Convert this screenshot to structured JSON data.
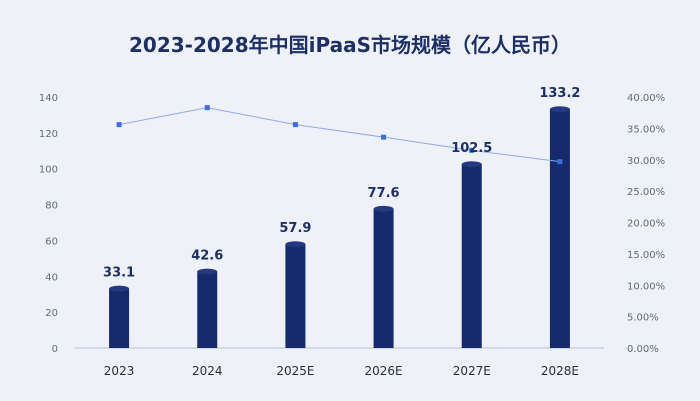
{
  "chart_data": {
    "type": "bar",
    "title": "2023-2028年中国iPaaS市场规模（亿人民币）",
    "categories": [
      "2023",
      "2024",
      "2025E",
      "2026E",
      "2027E",
      "2028E"
    ],
    "series": [
      {
        "type": "bar",
        "values": [
          33.1,
          42.6,
          57.9,
          77.6,
          102.5,
          133.2
        ],
        "axis": "left",
        "color": "#15296b"
      },
      {
        "type": "line",
        "values": [
          35.6,
          38.3,
          35.6,
          33.6,
          31.5,
          29.7
        ],
        "axis": "right",
        "color": "#3b6ee0"
      }
    ],
    "ylim_left": [
      0,
      140
    ],
    "yticks_left": [
      "0",
      "20",
      "40",
      "60",
      "80",
      "100",
      "120",
      "140"
    ],
    "ylim_right": [
      0,
      40
    ],
    "yticks_right": [
      "0.00%",
      "5.00%",
      "10.00%",
      "15.00%",
      "20.00%",
      "25.00%",
      "30.00%",
      "35.00%",
      "40.00%"
    ],
    "data_labels": [
      "33.1",
      "42.6",
      "57.9",
      "77.6",
      "102.5",
      "133.2"
    ],
    "grid": false,
    "legend": "none"
  }
}
